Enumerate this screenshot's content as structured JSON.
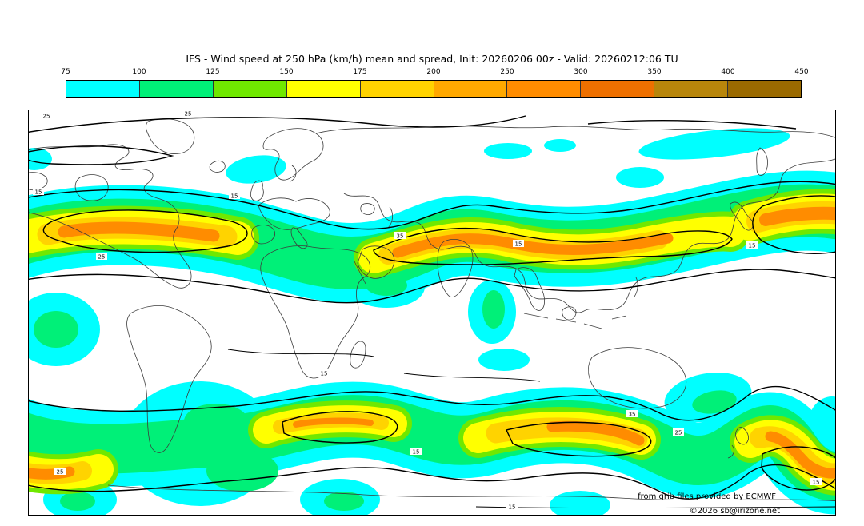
{
  "title": "IFS - Wind speed at 250 hPa (km/h) mean and spread, Init: 20260206 00z - Valid: 20260212:06 TU",
  "colorbar": {
    "unit": "km/h",
    "tick_labels": [
      "75",
      "100",
      "125",
      "150",
      "175",
      "200",
      "250",
      "300",
      "350",
      "400",
      "450"
    ],
    "colors": [
      "#00ffff",
      "#00f078",
      "#70e800",
      "#ffff00",
      "#ffd300",
      "#ffa800",
      "#ff8c00",
      "#ee7000",
      "#b8860b",
      "#9a6a00"
    ]
  },
  "map": {
    "contour_label_values": {
      "low": "15",
      "mid": "25",
      "high": "35"
    },
    "attribution_line1": "from grib files provided by ECMWF",
    "attribution_line2": "©2026 sb@irizone.net"
  },
  "chart_data": {
    "type": "filled-contour-map",
    "title": "IFS - Wind speed at 250 hPa (km/h) mean and spread",
    "variable": "Wind speed at 250 hPa",
    "unit": "km/h",
    "init": "20260206 00z",
    "valid": "20260212:06 TU",
    "legend_bins": [
      75,
      100,
      125,
      150,
      175,
      200,
      250,
      300,
      350,
      400,
      450
    ],
    "legend_colors": [
      "#00ffff",
      "#00f078",
      "#70e800",
      "#ffff00",
      "#ffd300",
      "#ffa800",
      "#ff8c00",
      "#ee7000",
      "#b8860b",
      "#9a6a00"
    ],
    "spread_contour_levels": [
      15,
      25,
      35
    ],
    "features": [
      "Northern-hemisphere jet band ~35-55N with orange (200-300 km/h) cores over eastern North America / west Atlantic, over Europe-central Asia, and near Japan / west Pacific",
      "Southern-hemisphere jet band ~40-60S with yellow-orange cores over the south Indian Ocean and south Pacific",
      "Cyan patches (75-100 km/h) at high northern latitudes and scattered through the tropics",
      "Black overlay contours of ensemble spread labelled 15, 25 and 35"
    ],
    "attribution": [
      "from grib files provided by ECMWF",
      "©2026 sb@irizone.net"
    ]
  }
}
